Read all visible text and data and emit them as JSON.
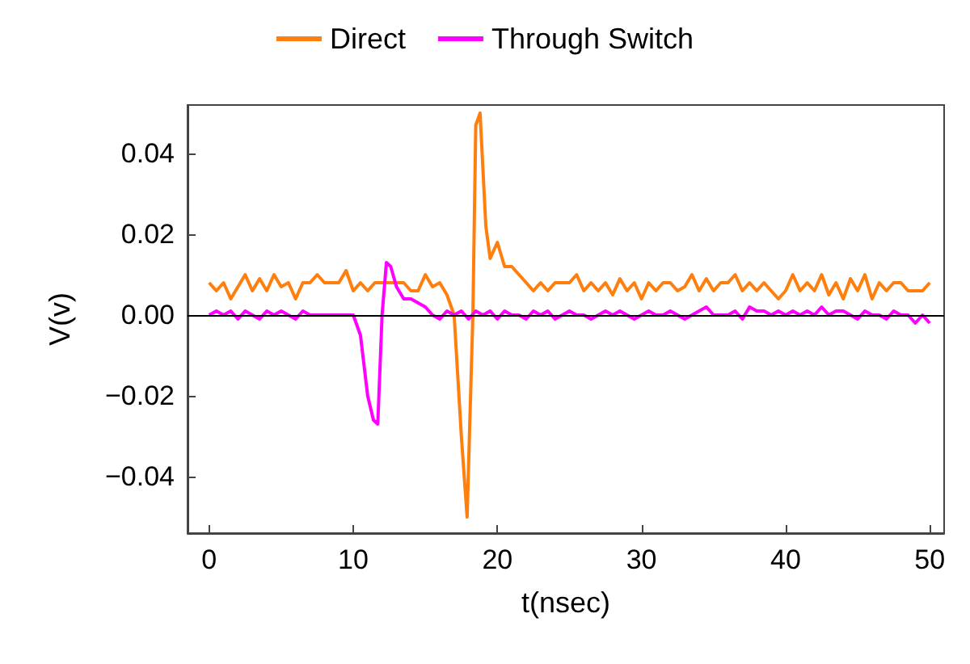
{
  "chart_data": {
    "type": "line",
    "xlabel": "t(nsec)",
    "ylabel": "V(v)",
    "xlim": [
      -1.5,
      51
    ],
    "ylim": [
      -0.054,
      0.052
    ],
    "xticks": [
      0,
      10,
      20,
      30,
      40,
      50
    ],
    "yticks": [
      {
        "value": -0.04,
        "label": "−0.04"
      },
      {
        "value": -0.02,
        "label": "−0.02"
      },
      {
        "value": 0,
        "label": "0.00"
      },
      {
        "value": 0.02,
        "label": "0.02"
      },
      {
        "value": 0.04,
        "label": "0.04"
      }
    ],
    "legend": "top",
    "grid": false,
    "marker": "none",
    "line_style": "solid",
    "ref_lines": [
      {
        "axis": "y",
        "value": 0,
        "label": null,
        "color": "#000000"
      }
    ],
    "series": [
      {
        "name": "Direct",
        "color": "#ff7f0e",
        "x": [
          0,
          0.5,
          1,
          1.5,
          2,
          2.5,
          3,
          3.5,
          4,
          4.5,
          5,
          5.5,
          6,
          6.5,
          7,
          7.5,
          8,
          8.5,
          9,
          9.5,
          10,
          10.5,
          11,
          11.5,
          12,
          12.5,
          13,
          13.5,
          14,
          14.5,
          15,
          15.5,
          16,
          16.5,
          17,
          17.5,
          17.9,
          18.3,
          18.5,
          18.8,
          19.2,
          19.5,
          20,
          20.5,
          21,
          21.5,
          22,
          22.5,
          23,
          23.5,
          24,
          24.5,
          25,
          25.5,
          26,
          26.5,
          27,
          27.5,
          28,
          28.5,
          29,
          29.5,
          30,
          30.5,
          31,
          31.5,
          32,
          32.5,
          33,
          33.5,
          34,
          34.5,
          35,
          35.5,
          36,
          36.5,
          37,
          37.5,
          38,
          38.5,
          39,
          39.5,
          40,
          40.5,
          41,
          41.5,
          42,
          42.5,
          43,
          43.5,
          44,
          44.5,
          45,
          45.5,
          46,
          46.5,
          47,
          47.5,
          48,
          48.5,
          49,
          49.5,
          50
        ],
        "values": [
          0.008,
          0.006,
          0.008,
          0.004,
          0.007,
          0.01,
          0.006,
          0.009,
          0.006,
          0.01,
          0.007,
          0.008,
          0.004,
          0.008,
          0.008,
          0.01,
          0.008,
          0.008,
          0.008,
          0.011,
          0.006,
          0.008,
          0.006,
          0.008,
          0.008,
          0.008,
          0.008,
          0.008,
          0.006,
          0.006,
          0.01,
          0.007,
          0.008,
          0.005,
          0.0,
          -0.03,
          -0.05,
          0.0,
          0.047,
          0.05,
          0.022,
          0.014,
          0.018,
          0.012,
          0.012,
          0.01,
          0.008,
          0.006,
          0.008,
          0.006,
          0.008,
          0.008,
          0.008,
          0.01,
          0.006,
          0.008,
          0.006,
          0.008,
          0.005,
          0.009,
          0.006,
          0.008,
          0.004,
          0.008,
          0.006,
          0.008,
          0.008,
          0.006,
          0.007,
          0.01,
          0.006,
          0.009,
          0.006,
          0.008,
          0.008,
          0.01,
          0.006,
          0.008,
          0.006,
          0.008,
          0.006,
          0.004,
          0.006,
          0.01,
          0.006,
          0.008,
          0.006,
          0.01,
          0.005,
          0.008,
          0.004,
          0.009,
          0.006,
          0.01,
          0.004,
          0.008,
          0.006,
          0.008,
          0.008,
          0.006,
          0.006,
          0.006,
          0.008
        ]
      },
      {
        "name": "Through Switch",
        "color": "#ff00ff",
        "x": [
          0,
          0.5,
          1,
          1.5,
          2,
          2.5,
          3,
          3.5,
          4,
          4.5,
          5,
          5.5,
          6,
          6.5,
          7,
          7.5,
          8,
          8.5,
          9,
          9.5,
          10,
          10.5,
          11,
          11.4,
          11.7,
          12,
          12.3,
          12.6,
          13,
          13.5,
          14,
          14.5,
          15,
          15.5,
          16,
          16.5,
          17,
          17.5,
          18,
          18.5,
          19,
          19.5,
          20,
          20.5,
          21,
          21.5,
          22,
          22.5,
          23,
          23.5,
          24,
          24.5,
          25,
          25.5,
          26,
          26.5,
          27,
          27.5,
          28,
          28.5,
          29,
          29.5,
          30,
          30.5,
          31,
          31.5,
          32,
          32.5,
          33,
          33.5,
          34,
          34.5,
          35,
          35.5,
          36,
          36.5,
          37,
          37.5,
          38,
          38.5,
          39,
          39.5,
          40,
          40.5,
          41,
          41.5,
          42,
          42.5,
          43,
          43.5,
          44,
          44.5,
          45,
          45.5,
          46,
          46.5,
          47,
          47.5,
          48,
          48.5,
          49,
          49.5,
          50
        ],
        "values": [
          0,
          0.001,
          0,
          0.001,
          -0.001,
          0.001,
          0,
          -0.001,
          0.001,
          0,
          0.001,
          0,
          -0.001,
          0.001,
          0,
          0,
          0,
          0,
          0,
          0,
          0,
          -0.005,
          -0.02,
          -0.026,
          -0.027,
          0.0,
          0.013,
          0.012,
          0.007,
          0.004,
          0.004,
          0.003,
          0.002,
          0,
          -0.001,
          0.001,
          0,
          0.001,
          -0.001,
          0.001,
          0,
          0.001,
          -0.001,
          0.001,
          0,
          0,
          -0.001,
          0.001,
          0,
          0.001,
          -0.001,
          0,
          0.001,
          0,
          0,
          -0.001,
          0,
          0.001,
          0,
          0.001,
          0,
          -0.001,
          0,
          0.001,
          0,
          0,
          0.001,
          0,
          -0.001,
          0,
          0.001,
          0.002,
          0,
          0,
          0,
          0.001,
          -0.001,
          0.002,
          0.001,
          0.001,
          0,
          0.001,
          0,
          0.001,
          0,
          0.001,
          0,
          0.002,
          0,
          0.001,
          0.001,
          0,
          -0.001,
          0.001,
          0,
          0,
          -0.001,
          0.001,
          0,
          0,
          -0.002,
          0,
          -0.002
        ]
      }
    ]
  }
}
